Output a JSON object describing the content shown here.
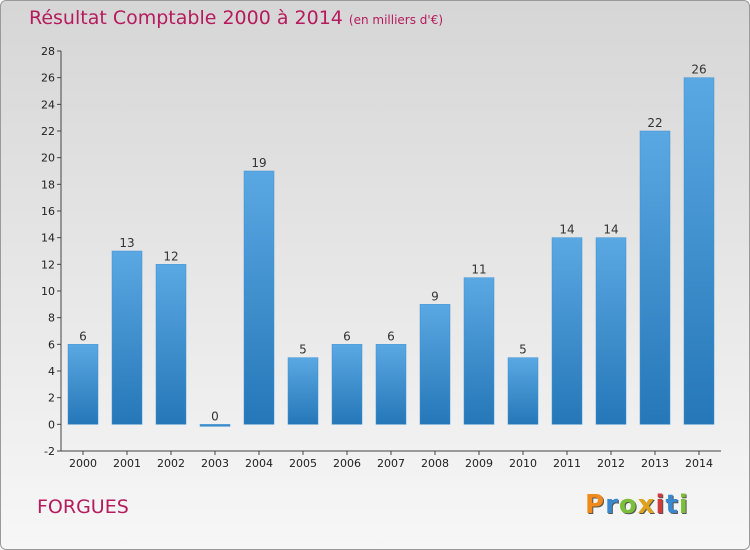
{
  "header": {
    "title": "Résultat Comptable 2000 à 2014",
    "subtitle": "(en milliers d'€)"
  },
  "footer": {
    "commune": "FORGUES",
    "logo_text": "Proxiti"
  },
  "colors": {
    "title": "#b51b5d",
    "bar_light": "#5aa8e3",
    "bar_dark": "#2677b8",
    "logo_letters": [
      "#f08a1c",
      "#3a88cf",
      "#7cbf3a",
      "#e0a21a",
      "#d23b3b",
      "#3a88cf",
      "#7cbf3a"
    ]
  },
  "chart_data": {
    "type": "bar",
    "categories": [
      "2000",
      "2001",
      "2002",
      "2003",
      "2004",
      "2005",
      "2006",
      "2007",
      "2008",
      "2009",
      "2010",
      "2011",
      "2012",
      "2013",
      "2014"
    ],
    "values": [
      6,
      13,
      12,
      0,
      19,
      5,
      6,
      6,
      9,
      11,
      5,
      14,
      14,
      22,
      26
    ],
    "ylim": [
      -2,
      28
    ],
    "yticks": [
      -2,
      0,
      2,
      4,
      6,
      8,
      10,
      12,
      14,
      16,
      18,
      20,
      22,
      24,
      26,
      28
    ],
    "grid": false,
    "legend": "none"
  }
}
